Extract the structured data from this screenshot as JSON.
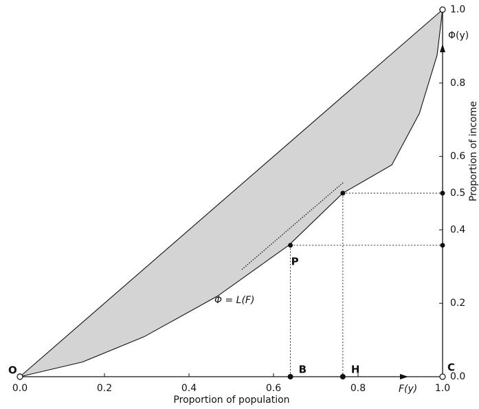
{
  "chart_data": {
    "type": "lorenz",
    "x_label": "Proportion of population",
    "y_label": "Proportion of income",
    "x_symbol": "F(y)",
    "y_symbol": "Φ(y)",
    "curve_label": "Φ = L(F)",
    "origin_label": "O",
    "corner_label": "C",
    "xlim": [
      0,
      1
    ],
    "ylim": [
      0,
      1
    ],
    "xticks": [
      {
        "value": 0,
        "label": "0.0"
      },
      0.2,
      0.4,
      0.6,
      0.8,
      {
        "value": 1,
        "label": "1.0"
      }
    ],
    "yticks": [
      {
        "value": 0,
        "label": "0.0"
      },
      0.2,
      0.4,
      0.5,
      0.6,
      0.8,
      {
        "value": 1,
        "label": "1.0"
      }
    ],
    "equality": {
      "x": [
        0,
        1
      ],
      "y": [
        0,
        1
      ]
    },
    "lorenz": {
      "x": [
        0,
        0.148,
        0.294,
        0.468,
        0.636,
        0.764,
        0.88,
        0.945,
        0.987,
        1
      ],
      "y": [
        0,
        0.04,
        0.109,
        0.22,
        0.358,
        0.5,
        0.577,
        0.717,
        0.876,
        1
      ]
    },
    "tangent": {
      "x": [
        0.525,
        0.766
      ],
      "y": [
        0.292,
        0.53
      ]
    },
    "points": [
      {
        "label": "P",
        "foot_label": "B",
        "x": 0.64,
        "y": 0.358
      },
      {
        "foot_label": "H",
        "x": 0.764,
        "y": 0.5
      }
    ],
    "fill_color": "#d4d4d4",
    "line_color": "#111111"
  }
}
